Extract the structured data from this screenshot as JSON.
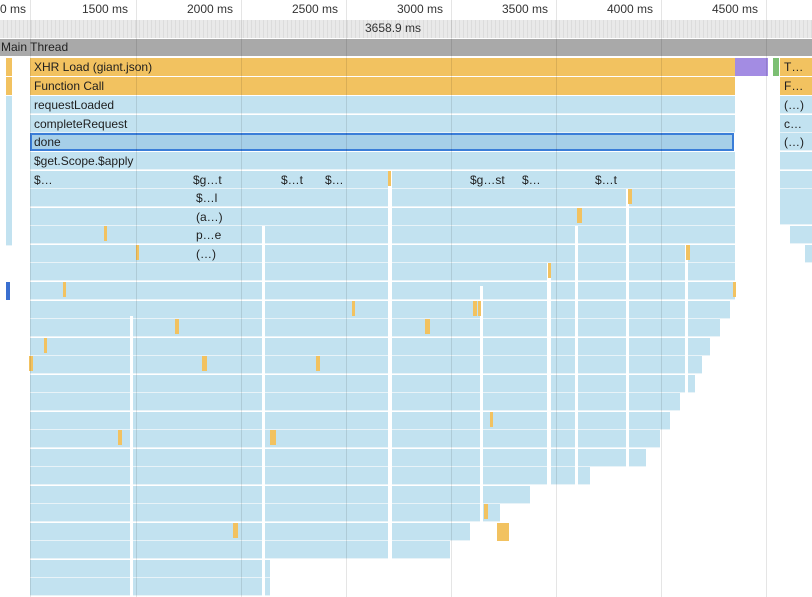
{
  "ruler": {
    "ticks": [
      "0 ms",
      "1500 ms",
      "2000 ms",
      "2500 ms",
      "3000 ms",
      "3500 ms",
      "4000 ms",
      "4500 ms"
    ]
  },
  "selection": {
    "duration": "3658.9 ms"
  },
  "thread": {
    "name": "Main Thread"
  },
  "flame": {
    "xhr_load": "XHR Load (giant.json)",
    "function_call": "Function Call",
    "request_loaded": "requestLoaded",
    "complete_request": "completeRequest",
    "done": "done",
    "scope_apply": "$get.Scope.$apply",
    "row6_labels": [
      "$…",
      "$g…t",
      "$…t",
      "$…",
      "$g…st",
      "$…",
      "$…t"
    ],
    "row7_label": "$…l",
    "row8_label": "(a…)",
    "row9_label": "p…e",
    "row10_label": "(…)",
    "right_labels": [
      "T…",
      "F…",
      "(…)",
      "c…",
      "(…)"
    ]
  },
  "colors": {
    "script_blue": "#c2e2f0",
    "xhr_gold": "#f2c260",
    "render_purple": "#a38ce3",
    "paint_green": "#7cbf73",
    "selection": "#3a7dd8",
    "thread_header": "#a9a9a9"
  }
}
